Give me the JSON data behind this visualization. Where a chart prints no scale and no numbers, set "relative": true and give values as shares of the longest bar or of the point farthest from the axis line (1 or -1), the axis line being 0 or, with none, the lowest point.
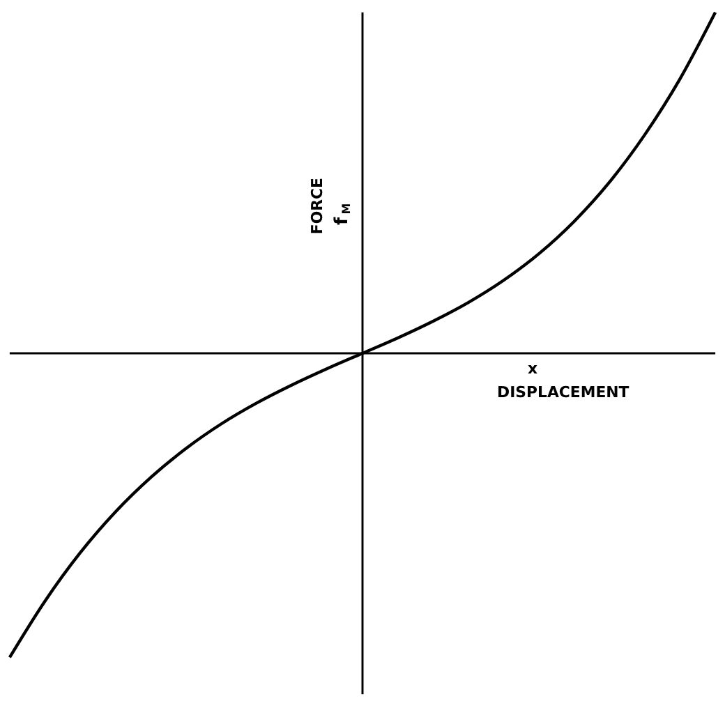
{
  "chart_data": {
    "type": "line",
    "relative": true,
    "xlabel": "x DISPLACEMENT",
    "ylabel": "FORCE f$_{M}$",
    "color": "#000000",
    "categories": [
      null,
      null,
      null,
      null,
      null,
      null,
      null,
      null,
      null,
      null,
      null,
      null,
      null,
      null,
      null,
      null,
      null,
      null,
      null,
      null,
      null
    ],
    "values": [
      -0.892,
      -0.727,
      -0.585,
      -0.465,
      -0.364,
      -0.279,
      -0.207,
      -0.146,
      -0.093,
      -0.045,
      0,
      0.045,
      0.094,
      0.149,
      0.214,
      0.292,
      0.387,
      0.502,
      0.641,
      0.805,
      1
    ]
  }
}
